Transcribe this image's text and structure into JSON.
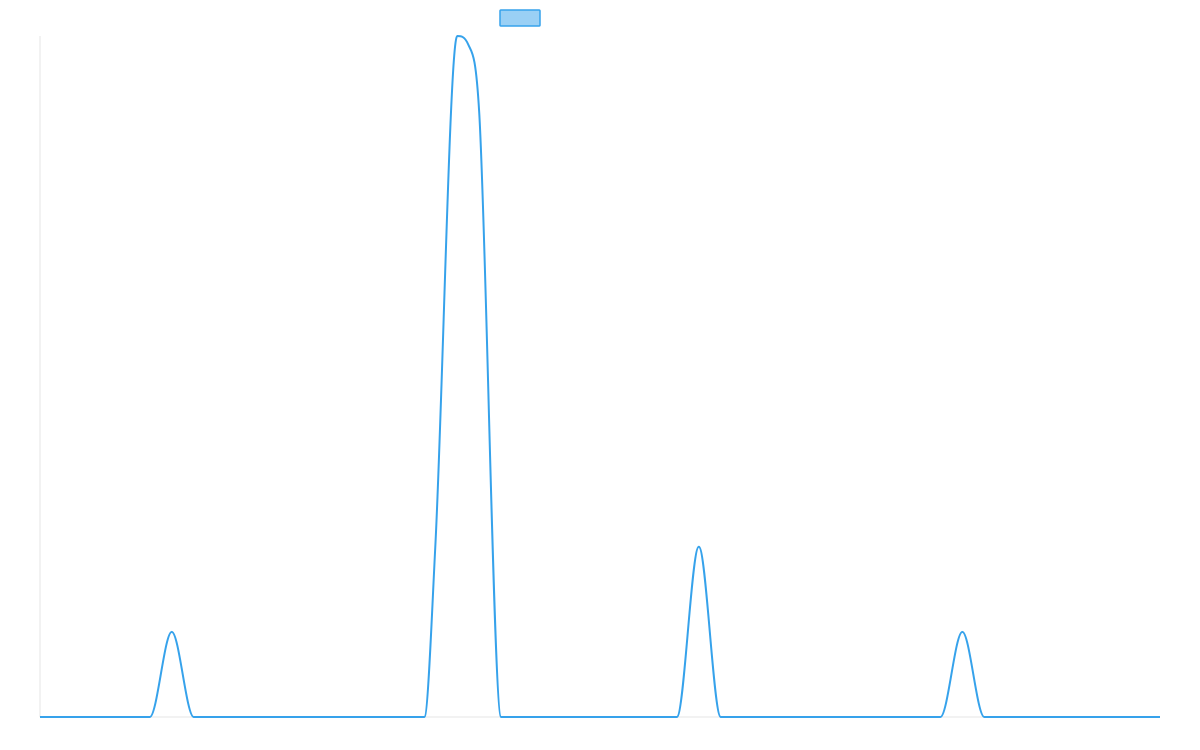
{
  "chart_data": {
    "type": "line",
    "title": "",
    "xlabel": "",
    "ylabel": "",
    "grid": false,
    "legend": {
      "placement": "top-center",
      "entries": [
        ""
      ]
    },
    "xlim": [
      0,
      51
    ],
    "ylim": [
      0,
      8
    ],
    "x": [
      0,
      1,
      2,
      3,
      4,
      5,
      6,
      7,
      8,
      9,
      10,
      11,
      12,
      13,
      14,
      15,
      16,
      17,
      17.5,
      18,
      19,
      19.5,
      20,
      21,
      22,
      23,
      24,
      25,
      26,
      27,
      28,
      29,
      30,
      31,
      32,
      33,
      34,
      35,
      36,
      37,
      38,
      39,
      40,
      41,
      42,
      43,
      44,
      45,
      46,
      47,
      48,
      49,
      50,
      51
    ],
    "series": [
      {
        "name": "",
        "color": "#36a2eb",
        "fill": "#9ad0f5",
        "values": [
          0,
          0,
          0,
          0,
          0,
          0,
          1,
          0,
          0,
          0,
          0,
          0,
          0,
          0,
          0,
          0,
          0,
          0,
          0,
          2,
          8,
          7.9,
          7.1,
          0,
          0,
          0,
          0,
          0,
          0,
          0,
          0,
          0,
          2,
          0,
          0,
          0,
          0,
          0,
          0,
          0,
          0,
          0,
          0,
          0,
          1,
          0,
          0,
          0,
          0,
          0,
          0,
          0,
          0,
          0
        ]
      }
    ]
  },
  "colors": {
    "line": "#36a2eb",
    "legend_fill": "#9ad0f5",
    "axis": "#e5e5e5"
  }
}
